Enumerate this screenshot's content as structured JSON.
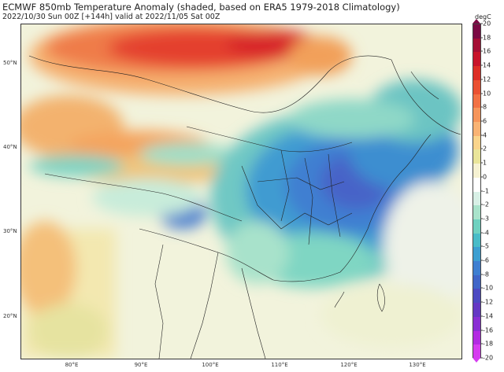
{
  "title": "ECMWF 850mb Temperature Anomaly (shaded, based on ERA5 1979-2018 Climatology)",
  "subtitle": "2022/10/30 Sun 00Z [+144h] valid at 2022/11/05 Sat 00Z",
  "map": {
    "lat_labels": [
      "50°N",
      "40°N",
      "30°N",
      "20°N"
    ],
    "lon_labels": [
      "80°E",
      "90°E",
      "100°E",
      "110°E",
      "120°E",
      "130°E"
    ]
  },
  "colorbar": {
    "unit": "degC",
    "ticks": [
      "20",
      "18",
      "16",
      "14",
      "12",
      "10",
      "8",
      "6",
      "4",
      "2",
      "1",
      "0",
      "-1",
      "-2",
      "-3",
      "-4",
      "-5",
      "-6",
      "-8",
      "-10",
      "-12",
      "-14",
      "-16",
      "-18",
      "-20"
    ],
    "colors": [
      "#7b0a44",
      "#a50f35",
      "#c8142b",
      "#dd2e26",
      "#ea5132",
      "#f27144",
      "#f6955b",
      "#f9b374",
      "#fad48b",
      "#e9e59a",
      "#f6f2d2",
      "#ffffff",
      "#d8f0e6",
      "#a9e3cb",
      "#6fd1c0",
      "#49bcc8",
      "#3d9fd1",
      "#3f7fd1",
      "#4166c8",
      "#4d4ac2",
      "#6538c4",
      "#8a2fd4",
      "#b22be2",
      "#d63cf0"
    ]
  }
}
